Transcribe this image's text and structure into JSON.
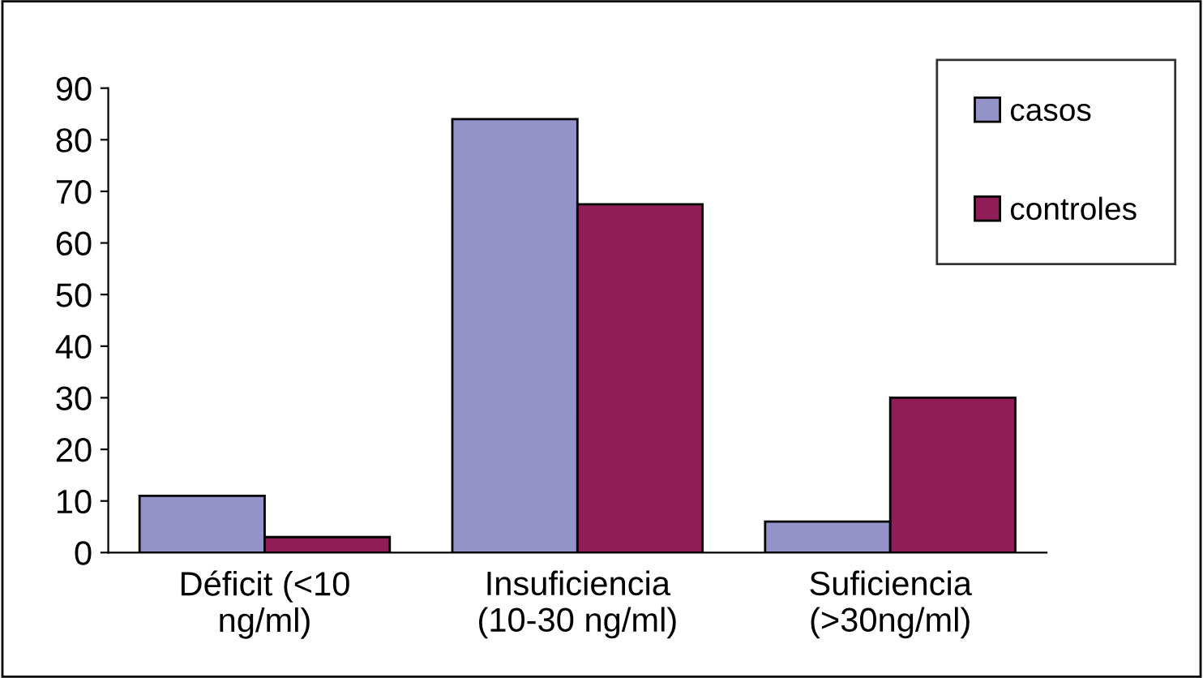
{
  "chart_data": {
    "type": "bar",
    "categories": [
      "Déficit (<10\nng/ml)",
      "Insuficiencia\n(10-30 ng/ml)",
      "Suficiencia\n(>30ng/ml)"
    ],
    "series": [
      {
        "name": "casos",
        "color": "#9393c9",
        "values": [
          11,
          84,
          6
        ]
      },
      {
        "name": "controles",
        "color": "#8e1d58",
        "values": [
          3,
          67.5,
          30
        ]
      }
    ],
    "ylim": [
      0,
      90
    ],
    "yticks": [
      0,
      10,
      20,
      30,
      40,
      50,
      60,
      70,
      80,
      90
    ],
    "grid": false,
    "legend": "top right"
  }
}
